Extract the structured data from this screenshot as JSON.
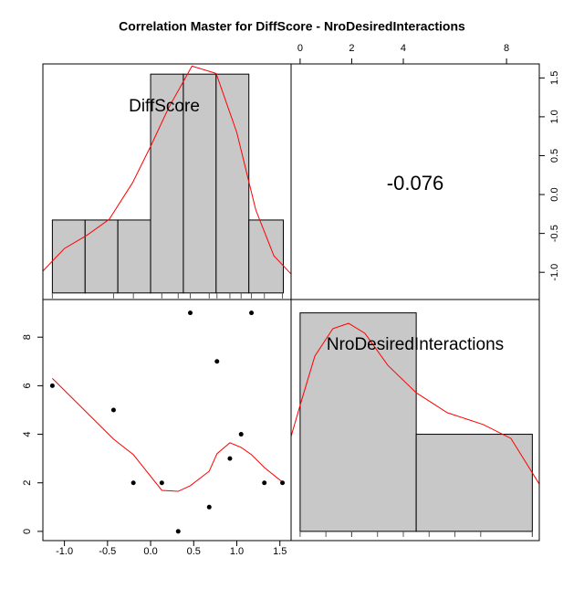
{
  "title": "Correlation Master for DiffScore - NroDesiredInteractions",
  "chart_data": [
    {
      "type": "histogram",
      "label": "DiffScore",
      "bins": [
        -1.14,
        -0.76,
        -0.38,
        0,
        0.38,
        0.76,
        1.14,
        1.54
      ],
      "counts": [
        1,
        1,
        1,
        3,
        3,
        3,
        1
      ],
      "color": "#c8c8c8",
      "xlim": [
        -1.25,
        1.63
      ],
      "ylim": [
        -0.09,
        3.14
      ],
      "density": {
        "color": "#ff0000",
        "x": [
          -1.25,
          -1.0,
          -0.74,
          -0.48,
          -0.21,
          0,
          0.21,
          0.48,
          0.76,
          1.0,
          1.22,
          1.43,
          1.63
        ],
        "y": [
          0.3,
          0.61,
          0.79,
          1.01,
          1.51,
          2.01,
          2.54,
          3.11,
          3.01,
          2.2,
          1.14,
          0.51,
          0.26
        ]
      }
    },
    {
      "type": "text",
      "value": -0.076,
      "xlim": [
        -0.35,
        9.27
      ],
      "xticks": [
        0,
        2,
        4,
        8
      ],
      "ylim": [
        -1.35,
        1.68
      ],
      "yticks": [
        {
          "value": -1,
          "label": "-1.0"
        },
        {
          "value": -0.5,
          "label": "-0.5"
        },
        {
          "value": 0,
          "label": "0.0"
        },
        {
          "value": 0.5,
          "label": "0.5"
        },
        {
          "value": 1,
          "label": "1.0"
        },
        {
          "value": 1.5,
          "label": "1.5"
        }
      ]
    },
    {
      "type": "scatter",
      "color": "#000000",
      "smooth_color": "#ff0000",
      "x": [
        -1.14,
        -0.43,
        -0.2,
        0.13,
        0.32,
        0.46,
        0.68,
        0.77,
        0.92,
        1.05,
        1.17,
        1.32,
        1.53
      ],
      "y": [
        6,
        5,
        2,
        2,
        0,
        9,
        1,
        7,
        3,
        4,
        9,
        2,
        2
      ],
      "smooth": [
        6.3,
        3.8,
        3.16,
        1.69,
        1.65,
        1.88,
        2.48,
        3.2,
        3.65,
        3.46,
        3.16,
        2.63,
        2.03
      ],
      "xlim": [
        -1.25,
        1.63
      ],
      "ylim": [
        -0.38,
        9.55
      ],
      "xticks": [
        {
          "value": -1,
          "label": "-1.0"
        },
        {
          "value": -0.5,
          "label": "-0.5"
        },
        {
          "value": 0,
          "label": "0.0"
        },
        {
          "value": 0.5,
          "label": "0.5"
        },
        {
          "value": 1,
          "label": "1.0"
        },
        {
          "value": 1.5,
          "label": "1.5"
        }
      ],
      "yticks": [
        0,
        2,
        4,
        6,
        8
      ]
    },
    {
      "type": "histogram",
      "label": "NroDesiredInteractions",
      "bins": [
        0,
        4.5,
        9
      ],
      "counts": [
        9,
        4
      ],
      "color": "#c8c8c8",
      "xlim": [
        -0.35,
        9.27
      ],
      "ylim": [
        -0.38,
        9.55
      ],
      "density": {
        "color": "#ff0000",
        "x": [
          -0.35,
          0.04,
          0.57,
          1.27,
          1.88,
          2.51,
          3.4,
          4.5,
          5.7,
          7.1,
          8.17,
          9.27
        ],
        "y": [
          3.91,
          5.34,
          7.22,
          8.35,
          8.57,
          8.16,
          6.84,
          5.71,
          4.89,
          4.4,
          3.83,
          1.95
        ]
      }
    }
  ]
}
